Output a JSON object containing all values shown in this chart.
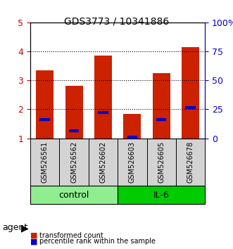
{
  "title": "GDS3773 / 10341886",
  "samples": [
    "GSM526561",
    "GSM526562",
    "GSM526602",
    "GSM526603",
    "GSM526605",
    "GSM526678"
  ],
  "red_bar_tops": [
    3.35,
    2.8,
    3.85,
    1.85,
    3.25,
    4.15
  ],
  "blue_marker_pos": [
    1.65,
    1.25,
    1.9,
    1.05,
    1.65,
    2.05
  ],
  "bar_bottom": 1.0,
  "ylim_left": [
    1,
    5
  ],
  "ylim_right": [
    0,
    100
  ],
  "yticks_left": [
    1,
    2,
    3,
    4,
    5
  ],
  "ytick_labels_left": [
    "1",
    "2",
    "3",
    "4",
    "5"
  ],
  "yticks_right_vals": [
    0,
    25,
    50,
    75,
    100
  ],
  "ytick_labels_right": [
    "0",
    "25",
    "50",
    "75",
    "100%"
  ],
  "groups": [
    {
      "label": "control",
      "start": 0,
      "end": 3,
      "color": "#90EE90"
    },
    {
      "label": "IL-6",
      "start": 3,
      "end": 6,
      "color": "#00CC00"
    }
  ],
  "agent_label": "agent",
  "legend_items": [
    {
      "color": "#CC0000",
      "label": "transformed count"
    },
    {
      "color": "#0000CC",
      "label": "percentile rank within the sample"
    }
  ],
  "red_color": "#CC2200",
  "blue_color": "#0000CC",
  "bar_width": 0.6,
  "grid_color": "#000000",
  "title_color": "#000000",
  "left_axis_color": "#CC0000",
  "right_axis_color": "#0000CC"
}
